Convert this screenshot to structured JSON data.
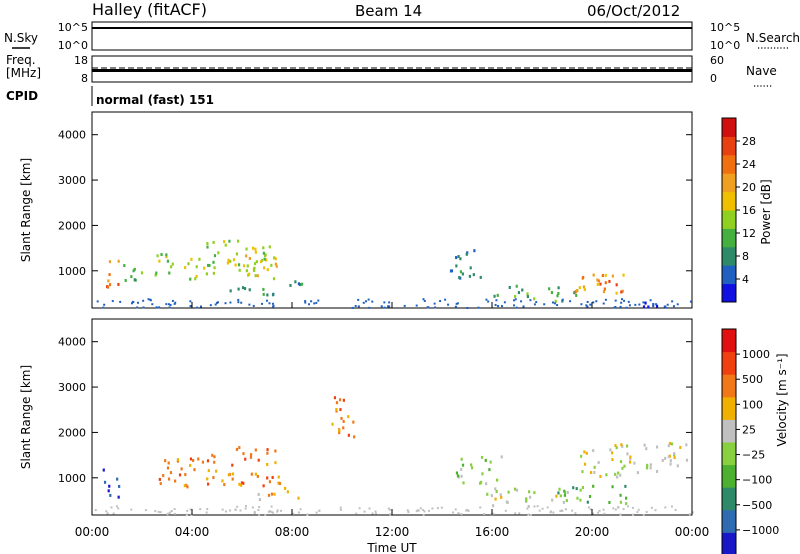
{
  "header": {
    "site": "Halley (fitACF)",
    "beam": "Beam 14",
    "date": "06/Oct/2012"
  },
  "panels": {
    "nsky": {
      "label": "N.Sky",
      "ticks_left": [
        "10^5",
        "10^0"
      ],
      "ticks_right": [
        "10^5",
        "10^0"
      ],
      "right_label": "N.Search"
    },
    "freq": {
      "label": "Freq.",
      "unit": "[MHz]",
      "ticks_left": [
        "18",
        "8"
      ],
      "ticks_right": [
        "60",
        "0"
      ],
      "right_label": "Nave"
    },
    "cpid": {
      "label": "CPID",
      "value": "normal (fast) 151"
    }
  },
  "chart_data": [
    {
      "type": "heatmap",
      "name": "power",
      "xlabel": "",
      "ylabel": "Slant Range [km]",
      "xlim": [
        0,
        24
      ],
      "ylim": [
        180,
        4500
      ],
      "yticks": [
        "1000",
        "2000",
        "3000",
        "4000"
      ],
      "colorbar": {
        "label": "Power [dB]",
        "ticks": [
          "4",
          "8",
          "12",
          "16",
          "20",
          "24",
          "28"
        ],
        "colors": [
          "#1010e0",
          "#2060c0",
          "#2f8a6a",
          "#45b040",
          "#90d020",
          "#f0c000",
          "#f0a020",
          "#f07010",
          "#e84010",
          "#d01010"
        ]
      },
      "blobs": [
        {
          "t0": 0.4,
          "t1": 1.1,
          "r0": 600,
          "r1": 1300,
          "c": 7
        },
        {
          "t0": 1.2,
          "t1": 2.4,
          "r0": 750,
          "r1": 1150,
          "c": 3
        },
        {
          "t0": 2.5,
          "t1": 4.5,
          "r0": 800,
          "r1": 1400,
          "c": 4
        },
        {
          "t0": 4.5,
          "t1": 7.3,
          "r0": 850,
          "r1": 1700,
          "c": 4
        },
        {
          "t0": 6.0,
          "t1": 7.5,
          "r0": 900,
          "r1": 1600,
          "c": 5
        },
        {
          "t0": 5.5,
          "t1": 8.5,
          "r0": 500,
          "r1": 800,
          "c": 2
        },
        {
          "t0": 14.2,
          "t1": 15.8,
          "r0": 850,
          "r1": 1500,
          "c": 2
        },
        {
          "t0": 16.0,
          "t1": 19.5,
          "r0": 350,
          "r1": 700,
          "c": 3
        },
        {
          "t0": 19.0,
          "t1": 21.3,
          "r0": 450,
          "r1": 950,
          "c": 6
        },
        {
          "t0": 20.0,
          "t1": 21.2,
          "r0": 550,
          "r1": 800,
          "c": 8
        },
        {
          "t0": 22.0,
          "t1": 23.8,
          "r0": 220,
          "r1": 380,
          "c": 1
        }
      ]
    },
    {
      "type": "heatmap",
      "name": "velocity",
      "xlabel": "Time UT",
      "ylabel": "Slant Range [km]",
      "xlim": [
        0,
        24
      ],
      "ylim": [
        180,
        4500
      ],
      "xticks": [
        "00:00",
        "04:00",
        "08:00",
        "12:00",
        "16:00",
        "20:00",
        "00:00"
      ],
      "yticks": [
        "1000",
        "2000",
        "3000",
        "4000"
      ],
      "colorbar": {
        "label": "Velocity [m s⁻¹]",
        "ticks": [
          "1000",
          "500",
          "100",
          "25",
          "−25",
          "−100",
          "−500",
          "−1000"
        ],
        "colors": [
          "#1818c8",
          "#2f6bb0",
          "#2f8a6a",
          "#4cb030",
          "#88d040",
          "#c0c0c0",
          "#f0b000",
          "#f07818",
          "#f04010",
          "#e01010"
        ]
      },
      "blobs": [
        {
          "t0": 0.4,
          "t1": 1.1,
          "r0": 600,
          "r1": 1300,
          "c": 1
        },
        {
          "t0": 2.5,
          "t1": 4.5,
          "r0": 800,
          "r1": 1500,
          "c": 7
        },
        {
          "t0": 4.5,
          "t1": 7.5,
          "r0": 850,
          "r1": 1700,
          "c": 7
        },
        {
          "t0": 6.5,
          "t1": 8.5,
          "r0": 550,
          "r1": 800,
          "c": 6
        },
        {
          "t0": 9.3,
          "t1": 10.5,
          "r0": 1900,
          "r1": 2800,
          "c": 7
        },
        {
          "t0": 14.5,
          "t1": 16.5,
          "r0": 900,
          "r1": 1500,
          "c": 4
        },
        {
          "t0": 15.5,
          "t1": 19.5,
          "r0": 400,
          "r1": 800,
          "c": 5
        },
        {
          "t0": 18.5,
          "t1": 21.5,
          "r0": 450,
          "r1": 850,
          "c": 3
        },
        {
          "t0": 19.5,
          "t1": 23.8,
          "r0": 1000,
          "r1": 1800,
          "c": 5
        }
      ]
    }
  ]
}
